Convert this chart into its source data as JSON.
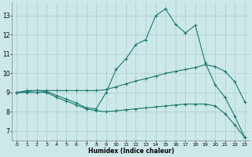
{
  "xlabel": "Humidex (Indice chaleur)",
  "bg_color": "#cce8e8",
  "grid_color": "#aacccc",
  "line_color": "#1a7a6e",
  "xlim": [
    -0.5,
    23.5
  ],
  "ylim": [
    6.5,
    13.7
  ],
  "xticks": [
    0,
    1,
    2,
    3,
    4,
    5,
    6,
    7,
    8,
    9,
    10,
    11,
    12,
    13,
    14,
    15,
    16,
    17,
    18,
    19,
    20,
    21,
    22,
    23
  ],
  "yticks": [
    7,
    8,
    9,
    10,
    11,
    12,
    13
  ],
  "line1_x": [
    0,
    1,
    2,
    3,
    4,
    5,
    6,
    7,
    8,
    9,
    10,
    11,
    12,
    13,
    14,
    15,
    16,
    17,
    18,
    19,
    20,
    21,
    22,
    23
  ],
  "line1_y": [
    9.0,
    9.1,
    9.1,
    9.05,
    8.85,
    8.65,
    8.45,
    8.2,
    8.15,
    9.0,
    10.2,
    10.75,
    11.5,
    11.75,
    13.0,
    13.35,
    12.55,
    12.1,
    12.5,
    10.55,
    9.4,
    8.75,
    7.75,
    6.65
  ],
  "line2_x": [
    0,
    1,
    2,
    3,
    4,
    5,
    6,
    7,
    8,
    9,
    10,
    11,
    12,
    13,
    14,
    15,
    16,
    17,
    18,
    19,
    20,
    21,
    22,
    23
  ],
  "line2_y": [
    9.0,
    9.05,
    9.1,
    9.1,
    9.1,
    9.1,
    9.1,
    9.1,
    9.1,
    9.15,
    9.3,
    9.45,
    9.6,
    9.72,
    9.85,
    10.0,
    10.1,
    10.2,
    10.3,
    10.45,
    10.35,
    10.1,
    9.55,
    8.5
  ],
  "line3_x": [
    0,
    1,
    2,
    3,
    4,
    5,
    6,
    7,
    8,
    9,
    10,
    11,
    12,
    13,
    14,
    15,
    16,
    17,
    18,
    19,
    20,
    21,
    22,
    23
  ],
  "line3_y": [
    9.0,
    9.0,
    9.0,
    9.0,
    8.75,
    8.55,
    8.35,
    8.15,
    8.05,
    8.0,
    8.05,
    8.1,
    8.15,
    8.2,
    8.25,
    8.3,
    8.35,
    8.4,
    8.4,
    8.4,
    8.3,
    7.9,
    7.3,
    6.65
  ]
}
